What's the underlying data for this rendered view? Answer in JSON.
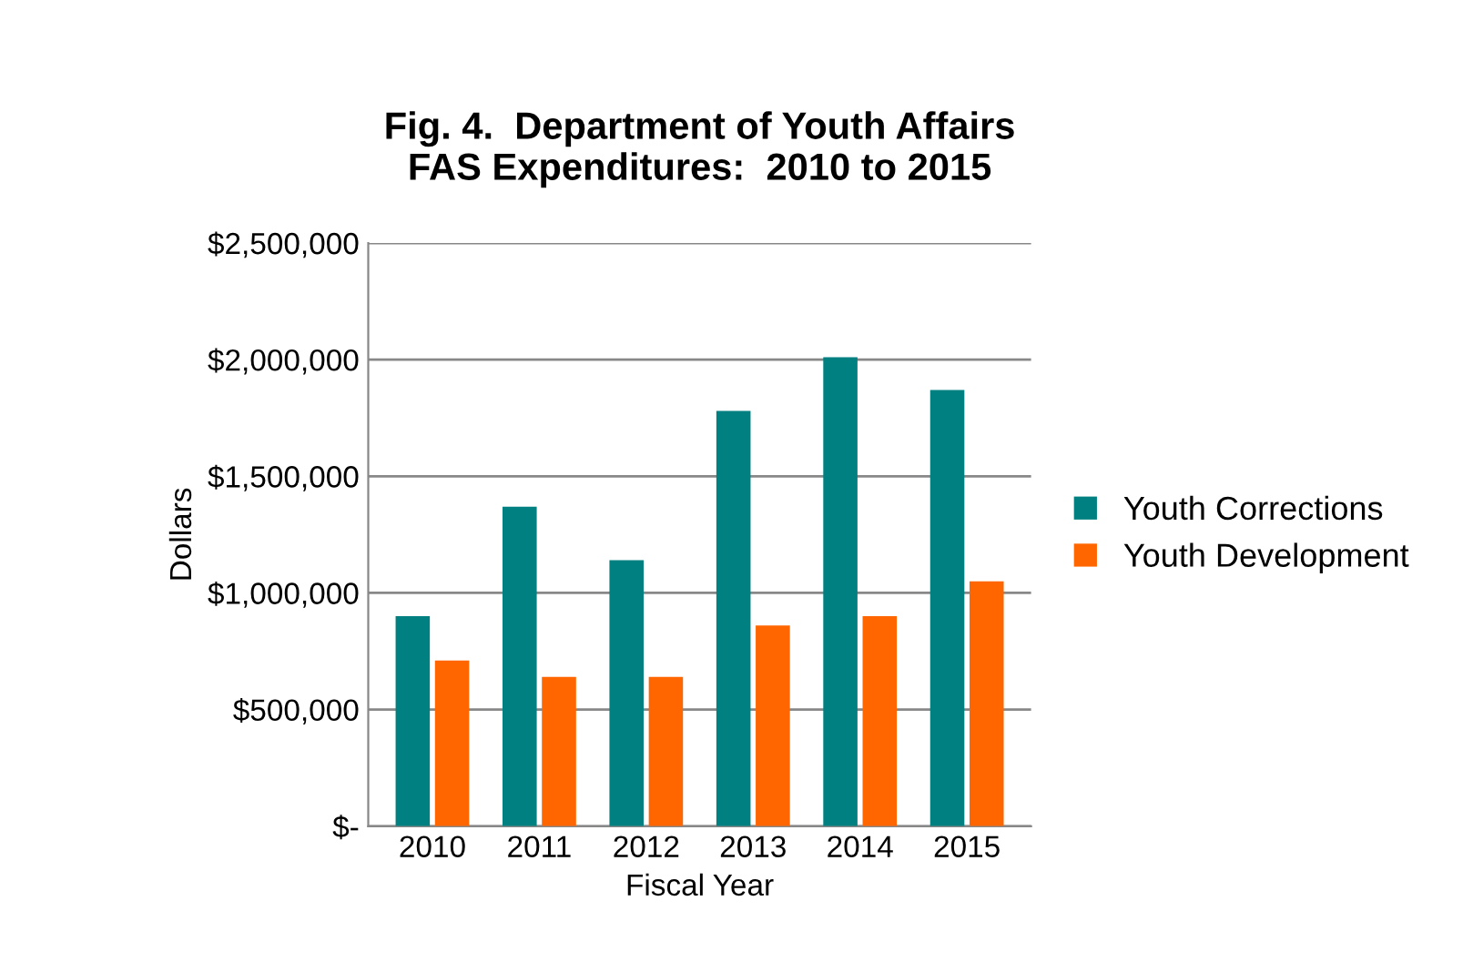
{
  "chart_data": {
    "type": "bar",
    "title": "Fig. 4.  Department of Youth Affairs\nFAS Expenditures:  2010 to 2015",
    "xlabel": "Fiscal Year",
    "ylabel": "Dollars",
    "categories": [
      "2010",
      "2011",
      "2012",
      "2013",
      "2014",
      "2015"
    ],
    "series": [
      {
        "name": "Youth Corrections",
        "color": "#008080",
        "values": [
          900000,
          1370000,
          1140000,
          1780000,
          2010000,
          1870000
        ]
      },
      {
        "name": "Youth Development",
        "color": "#ff6600",
        "values": [
          710000,
          640000,
          640000,
          860000,
          900000,
          1050000
        ]
      }
    ],
    "ylim": [
      0,
      2500000
    ],
    "yticks": [
      {
        "value": 0,
        "label": "$-"
      },
      {
        "value": 500000,
        "label": "$500,000"
      },
      {
        "value": 1000000,
        "label": "$1,000,000"
      },
      {
        "value": 1500000,
        "label": "$1,500,000"
      },
      {
        "value": 2000000,
        "label": "$2,000,000"
      },
      {
        "value": 2500000,
        "label": "$2,500,000"
      }
    ],
    "grid": "y",
    "legend": "right"
  }
}
